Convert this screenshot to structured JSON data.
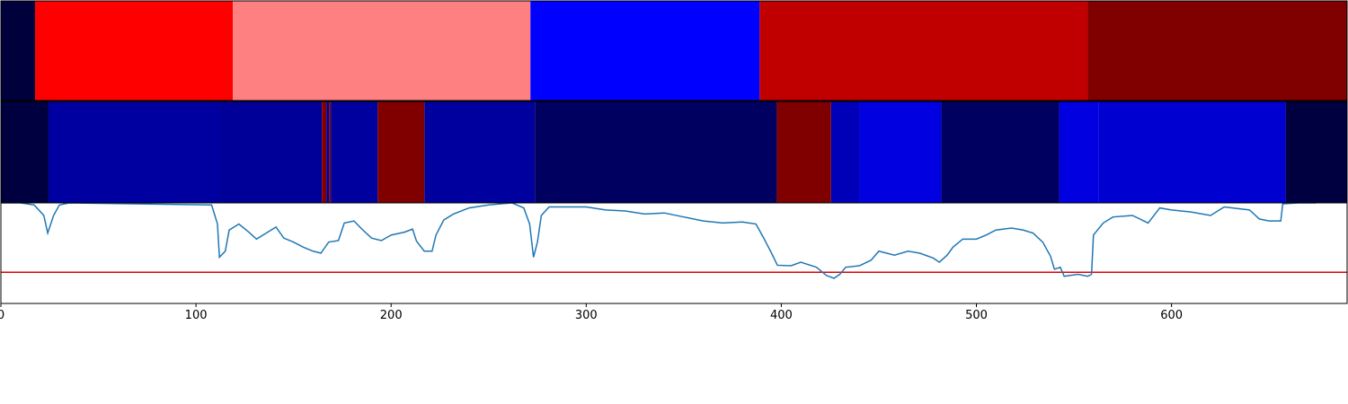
{
  "chart_data": [
    {
      "type": "segments",
      "xlim": [
        0,
        690
      ],
      "segments": [
        {
          "start": 0,
          "end": 17.5,
          "color": "#00003c"
        },
        {
          "start": 17.5,
          "end": 118.9,
          "color": "#ff0000"
        },
        {
          "start": 118.9,
          "end": 271.4,
          "color": "#ff8080"
        },
        {
          "start": 271.4,
          "end": 388.9,
          "color": "#0000ff"
        },
        {
          "start": 388.9,
          "end": 557.1,
          "color": "#c00000"
        },
        {
          "start": 557.1,
          "end": 690,
          "color": "#800000"
        }
      ]
    },
    {
      "type": "segments",
      "xlim": [
        0,
        690
      ],
      "segments": [
        {
          "start": 0,
          "end": 24.4,
          "color": "#000040"
        },
        {
          "start": 24.4,
          "end": 112.4,
          "color": "#0000a0"
        },
        {
          "start": 112.4,
          "end": 164.5,
          "color": "#000098"
        },
        {
          "start": 164.5,
          "end": 166.8,
          "color": "#800000"
        },
        {
          "start": 166.8,
          "end": 168.2,
          "color": "#0000a0"
        },
        {
          "start": 168.2,
          "end": 169.1,
          "color": "#800000"
        },
        {
          "start": 169.1,
          "end": 193.1,
          "color": "#00009e"
        },
        {
          "start": 193.1,
          "end": 217.1,
          "color": "#800000"
        },
        {
          "start": 217.1,
          "end": 273.7,
          "color": "#00009e"
        },
        {
          "start": 273.7,
          "end": 397.7,
          "color": "#000060"
        },
        {
          "start": 397.7,
          "end": 425.5,
          "color": "#800000"
        },
        {
          "start": 425.5,
          "end": 440.1,
          "color": "#0000b8"
        },
        {
          "start": 440.1,
          "end": 482.0,
          "color": "#0000e0"
        },
        {
          "start": 482.0,
          "end": 542.4,
          "color": "#000060"
        },
        {
          "start": 542.4,
          "end": 562.7,
          "color": "#0000e0"
        },
        {
          "start": 562.7,
          "end": 658.5,
          "color": "#0000d0"
        },
        {
          "start": 658.5,
          "end": 690,
          "color": "#000040"
        }
      ]
    },
    {
      "type": "line",
      "xlim": [
        0,
        690
      ],
      "ylim": [
        0,
        1
      ],
      "xticks": [
        0,
        100,
        200,
        300,
        400,
        500,
        600
      ],
      "threshold": 0.31,
      "threshold_color": "#e00000",
      "color": "#1f77b4",
      "x": [
        0,
        10,
        17,
        22,
        24,
        27,
        30,
        35,
        108,
        111,
        112,
        115,
        117,
        122,
        127,
        131,
        136,
        141,
        145,
        150,
        155,
        160,
        164,
        168,
        173,
        176,
        181,
        185,
        190,
        195,
        200,
        207,
        211,
        213,
        217,
        221,
        223,
        227,
        232,
        240,
        250,
        262,
        268,
        271,
        273,
        275,
        277,
        281,
        290,
        300,
        310,
        320,
        330,
        340,
        350,
        360,
        370,
        380,
        387,
        391,
        395,
        398,
        405,
        410,
        418,
        423,
        427,
        430,
        433,
        440,
        446,
        450,
        458,
        465,
        471,
        478,
        481,
        485,
        488,
        493,
        500,
        505,
        510,
        518,
        524,
        529,
        534,
        538,
        540,
        543,
        545,
        552,
        557,
        559,
        560,
        565,
        570,
        580,
        588,
        594,
        600,
        610,
        620,
        627,
        640,
        645,
        650,
        656,
        657,
        665,
        674
      ],
      "values": [
        1.0,
        1.0,
        0.98,
        0.875,
        0.7,
        0.875,
        0.98,
        1.0,
        0.98,
        0.79,
        0.46,
        0.52,
        0.73,
        0.79,
        0.71,
        0.64,
        0.7,
        0.76,
        0.65,
        0.61,
        0.56,
        0.52,
        0.5,
        0.61,
        0.625,
        0.8,
        0.82,
        0.74,
        0.65,
        0.625,
        0.68,
        0.71,
        0.74,
        0.62,
        0.52,
        0.52,
        0.68,
        0.83,
        0.89,
        0.95,
        0.98,
        1.0,
        0.95,
        0.79,
        0.46,
        0.61,
        0.875,
        0.96,
        0.96,
        0.96,
        0.93,
        0.92,
        0.89,
        0.9,
        0.86,
        0.82,
        0.8,
        0.81,
        0.79,
        0.65,
        0.5,
        0.38,
        0.375,
        0.41,
        0.36,
        0.28,
        0.25,
        0.29,
        0.36,
        0.375,
        0.43,
        0.52,
        0.48,
        0.52,
        0.5,
        0.45,
        0.41,
        0.48,
        0.56,
        0.64,
        0.64,
        0.68,
        0.73,
        0.75,
        0.73,
        0.7,
        0.61,
        0.47,
        0.34,
        0.36,
        0.27,
        0.29,
        0.27,
        0.29,
        0.68,
        0.8,
        0.86,
        0.875,
        0.8,
        0.95,
        0.93,
        0.91,
        0.875,
        0.96,
        0.93,
        0.84,
        0.82,
        0.82,
        0.99,
        1.0,
        1.0
      ]
    }
  ]
}
